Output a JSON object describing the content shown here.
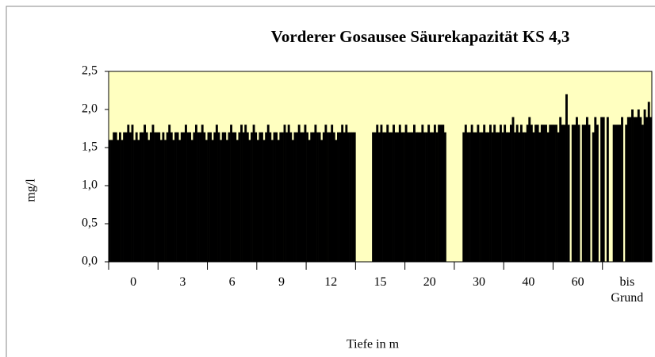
{
  "chart_data": {
    "type": "bar",
    "title": "Vorderer Gosausee Säurekapazität KS 4,3",
    "y_label": "mg/l",
    "x_label": "Tiefe in m",
    "categories": [
      "0",
      "3",
      "6",
      "9",
      "12",
      "15",
      "20",
      "30",
      "40",
      "60",
      "bis Grund"
    ],
    "color": "#000000",
    "background": "#ffffc0",
    "values": [
      [
        1.6,
        1.6,
        1.7,
        1.7,
        1.6,
        1.7,
        1.6,
        1.7,
        1.7,
        1.8,
        1.7,
        1.8,
        1.6,
        1.7,
        1.6,
        1.7,
        1.7,
        1.8,
        1.7,
        1.6,
        1.7,
        1.8,
        1.7,
        1.7
      ],
      [
        1.7,
        1.6,
        1.7,
        1.6,
        1.7,
        1.8,
        1.7,
        1.6,
        1.7,
        1.7,
        1.6,
        1.7,
        1.7,
        1.8,
        1.7,
        1.7,
        1.6,
        1.7,
        1.8,
        1.7,
        1.7,
        1.8,
        1.7,
        1.6
      ],
      [
        1.7,
        1.7,
        1.6,
        1.7,
        1.8,
        1.7,
        1.6,
        1.7,
        1.7,
        1.6,
        1.7,
        1.8,
        1.7,
        1.7,
        1.6,
        1.7,
        1.8,
        1.7,
        1.8,
        1.7,
        1.6,
        1.7,
        1.8,
        1.7
      ],
      [
        1.6,
        1.7,
        1.7,
        1.6,
        1.7,
        1.8,
        1.7,
        1.6,
        1.7,
        1.7,
        1.6,
        1.7,
        1.7,
        1.8,
        1.7,
        1.8,
        1.7,
        1.6,
        1.7,
        1.7,
        1.8,
        1.7,
        1.7,
        1.8
      ],
      [
        1.7,
        1.6,
        1.7,
        1.7,
        1.8,
        1.7,
        1.7,
        1.6,
        1.7,
        1.8,
        1.7,
        1.7,
        1.8,
        1.7,
        1.6,
        1.7,
        1.7,
        1.8,
        1.7,
        1.8,
        1.7,
        1.7,
        1.7,
        1.7
      ],
      [
        null,
        null,
        null,
        null,
        null,
        null,
        null,
        null,
        1.7,
        1.7,
        1.8,
        1.7,
        1.8,
        1.7,
        1.7,
        1.8,
        1.7,
        1.7,
        1.8,
        1.7,
        1.7,
        1.8,
        1.7,
        1.7
      ],
      [
        1.8,
        1.7,
        1.7,
        1.7,
        1.8,
        1.7,
        1.7,
        1.7,
        1.8,
        1.7,
        1.7,
        1.8,
        1.7,
        1.7,
        1.8,
        1.7,
        1.8,
        1.8,
        1.8,
        1.7,
        null,
        null,
        null,
        null
      ],
      [
        null,
        null,
        null,
        null,
        1.7,
        1.8,
        1.7,
        1.7,
        1.8,
        1.7,
        1.7,
        1.8,
        1.7,
        1.7,
        1.8,
        1.7,
        1.7,
        1.8,
        1.7,
        1.8,
        1.7,
        1.7,
        1.8,
        1.7
      ],
      [
        1.8,
        1.7,
        1.7,
        1.8,
        1.9,
        1.7,
        1.8,
        1.7,
        1.8,
        1.7,
        1.7,
        1.8,
        1.9,
        1.8,
        1.7,
        1.8,
        1.8,
        1.7,
        1.8,
        1.8,
        1.8,
        1.7,
        1.8,
        1.8
      ],
      [
        1.8,
        1.8,
        1.7,
        1.9,
        1.8,
        1.8,
        2.2,
        1.8,
        null,
        1.8,
        1.8,
        1.9,
        1.8,
        null,
        1.8,
        1.8,
        1.9,
        1.8,
        null,
        1.7,
        1.9,
        1.8,
        null,
        1.9
      ],
      [
        1.9,
        null,
        1.9,
        null,
        null,
        1.8,
        1.8,
        1.8,
        1.8,
        1.9,
        null,
        1.8,
        1.9,
        1.9,
        2.0,
        1.9,
        1.9,
        2.0,
        1.9,
        1.8,
        2.0,
        1.9,
        2.1,
        1.9
      ]
    ],
    "ylim": [
      0,
      2.5
    ],
    "yticks": [
      {
        "value": 0,
        "label": "0,0"
      },
      {
        "value": 0.5,
        "label": "0,5"
      },
      {
        "value": 1,
        "label": "1,0"
      },
      {
        "value": 1.5,
        "label": "1,5"
      },
      {
        "value": 2,
        "label": "2,0"
      },
      {
        "value": 2.5,
        "label": "2,5"
      }
    ]
  }
}
